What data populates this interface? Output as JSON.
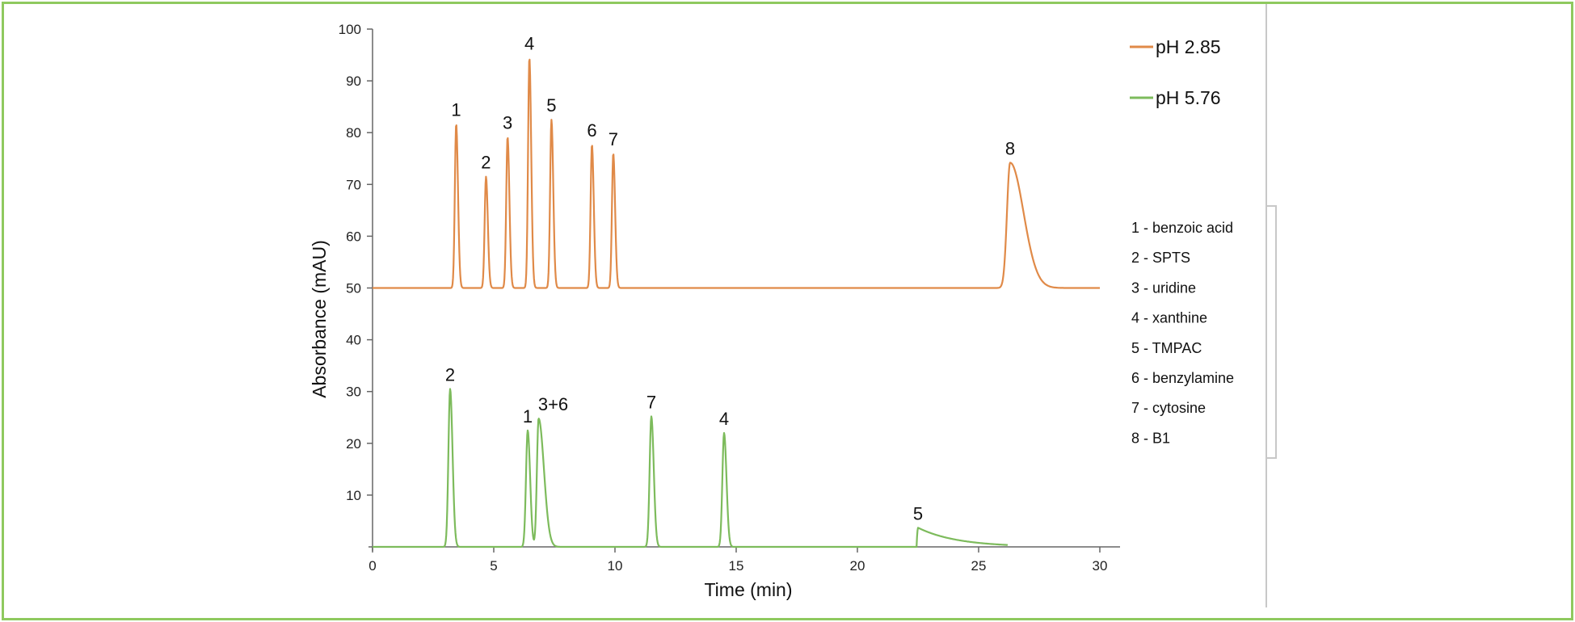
{
  "chart_data": {
    "type": "line",
    "xlabel": "Time (min)",
    "ylabel": "Absorbance (mAU)",
    "xlim": [
      0,
      30
    ],
    "ylim": [
      0,
      100
    ],
    "x_ticks": [
      0,
      5,
      10,
      15,
      20,
      25,
      30
    ],
    "y_ticks": [
      10,
      20,
      30,
      40,
      50,
      60,
      70,
      80,
      90,
      100
    ],
    "grid": false,
    "legend_position": "top-right",
    "series": [
      {
        "name": "pH 2.85",
        "color": "#e08a48",
        "baseline": 50,
        "peaks": [
          {
            "label": "1",
            "time": 3.45,
            "height": 81.7
          },
          {
            "label": "2",
            "time": 4.68,
            "height": 71.5
          },
          {
            "label": "3",
            "time": 5.57,
            "height": 79.2
          },
          {
            "label": "4",
            "time": 6.47,
            "height": 94.5
          },
          {
            "label": "5",
            "time": 7.38,
            "height": 82.5
          },
          {
            "label": "6",
            "time": 9.05,
            "height": 77.7
          },
          {
            "label": "7",
            "time": 9.93,
            "height": 76.0
          },
          {
            "label": "8",
            "time": 26.3,
            "height": 74.2
          }
        ]
      },
      {
        "name": "pH 5.76",
        "color": "#7dbb5c",
        "baseline": 0,
        "peaks": [
          {
            "label": "2",
            "time": 3.2,
            "height": 30.5
          },
          {
            "label": "1",
            "time": 6.4,
            "height": 22.5
          },
          {
            "label": "3+6",
            "time": 6.85,
            "height": 24.8
          },
          {
            "label": "7",
            "time": 11.5,
            "height": 25.2
          },
          {
            "label": "4",
            "time": 14.5,
            "height": 22.0
          },
          {
            "label": "5",
            "time": 22.5,
            "height": 3.7
          }
        ]
      }
    ],
    "compound_key": [
      "1 - benzoic acid",
      "2 - SPTS",
      "3 - uridine",
      "4 - xanthine",
      "5 - TMPAC",
      "6 - benzylamine",
      "7 - cytosine",
      "8 - B1"
    ]
  }
}
